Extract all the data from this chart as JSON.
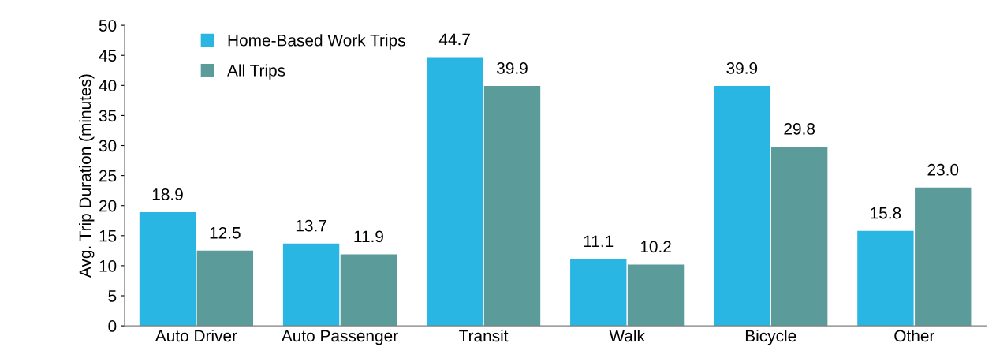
{
  "chart_data": {
    "type": "bar",
    "ylabel": "Avg. Trip Duration (minutes)",
    "categories": [
      "Auto Driver",
      "Auto Passenger",
      "Transit",
      "Walk",
      "Bicycle",
      "Other"
    ],
    "series": [
      {
        "name": "Home-Based Work Trips",
        "color": "#29b6e3",
        "values": [
          18.9,
          13.7,
          44.7,
          11.1,
          39.9,
          15.8
        ],
        "value_labels": [
          "18.9",
          "13.7",
          "44.7",
          "11.1",
          "39.9",
          "15.8"
        ]
      },
      {
        "name": "All Trips",
        "color": "#5b9b9a",
        "values": [
          12.5,
          11.9,
          39.9,
          10.2,
          29.8,
          23.0
        ],
        "value_labels": [
          "12.5",
          "11.9",
          "39.9",
          "10.2",
          "29.8",
          "23.0"
        ]
      }
    ],
    "ylim": [
      0,
      50
    ],
    "yticks": [
      0,
      5,
      10,
      15,
      20,
      25,
      30,
      35,
      40,
      45,
      50
    ],
    "grid": false,
    "legend": "top left"
  }
}
